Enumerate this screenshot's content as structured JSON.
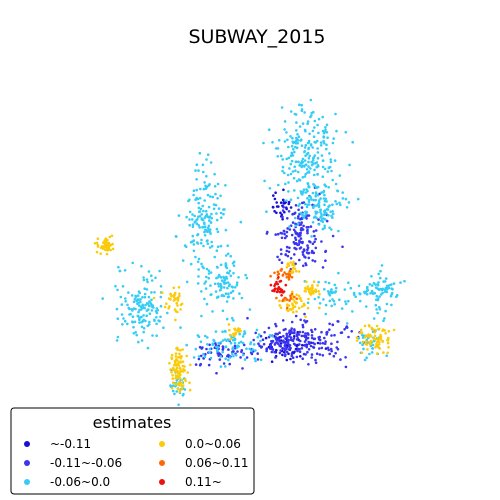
{
  "chart_data": {
    "type": "scatter",
    "title": "SUBWAY_2015",
    "legend": {
      "title": "estimates",
      "placement": "lower-left",
      "columns": 2
    },
    "classes": [
      {
        "name": "~-0.11",
        "color": "#1a0fd6"
      },
      {
        "name": "-0.11~-0.06",
        "color": "#3b35f0"
      },
      {
        "name": "-0.06~0.0",
        "color": "#35cdf5"
      },
      {
        "name": "0.0~0.06",
        "color": "#fbcb0a"
      },
      {
        "name": "0.06~0.11",
        "color": "#ff6a00"
      },
      {
        "name": "0.11~",
        "color": "#ee1010"
      }
    ],
    "clusters": [
      {
        "class": 2,
        "count": 220,
        "center": [
          305,
          155
        ],
        "spread": [
          24,
          40
        ],
        "seed": 11
      },
      {
        "class": 2,
        "count": 120,
        "center": [
          318,
          205
        ],
        "spread": [
          22,
          20
        ],
        "seed": 12
      },
      {
        "class": 2,
        "count": 160,
        "center": [
          203,
          220
        ],
        "spread": [
          18,
          45
        ],
        "seed": 13
      },
      {
        "class": 2,
        "count": 140,
        "center": [
          140,
          305
        ],
        "spread": [
          22,
          28
        ],
        "seed": 14
      },
      {
        "class": 2,
        "count": 90,
        "center": [
          222,
          285
        ],
        "spread": [
          16,
          22
        ],
        "seed": 15
      },
      {
        "class": 2,
        "count": 80,
        "center": [
          380,
          290
        ],
        "spread": [
          16,
          18
        ],
        "seed": 16
      },
      {
        "class": 2,
        "count": 90,
        "center": [
          230,
          345
        ],
        "spread": [
          28,
          15
        ],
        "seed": 17
      },
      {
        "class": 2,
        "count": 40,
        "center": [
          370,
          340
        ],
        "spread": [
          10,
          14
        ],
        "seed": 18
      },
      {
        "class": 2,
        "count": 30,
        "center": [
          178,
          385
        ],
        "spread": [
          8,
          12
        ],
        "seed": 19
      },
      {
        "class": 2,
        "count": 45,
        "center": [
          330,
          300
        ],
        "spread": [
          20,
          18
        ],
        "seed": 20
      },
      {
        "class": 1,
        "count": 160,
        "center": [
          300,
          235
        ],
        "spread": [
          22,
          28
        ],
        "seed": 21
      },
      {
        "class": 1,
        "count": 220,
        "center": [
          300,
          340
        ],
        "spread": [
          42,
          18
        ],
        "seed": 22
      },
      {
        "class": 1,
        "count": 60,
        "center": [
          225,
          355
        ],
        "spread": [
          28,
          12
        ],
        "seed": 23
      },
      {
        "class": 0,
        "count": 60,
        "center": [
          290,
          345
        ],
        "spread": [
          22,
          10
        ],
        "seed": 24
      },
      {
        "class": 0,
        "count": 30,
        "center": [
          280,
          205
        ],
        "spread": [
          8,
          10
        ],
        "seed": 25
      },
      {
        "class": 3,
        "count": 55,
        "center": [
          106,
          245
        ],
        "spread": [
          7,
          6
        ],
        "seed": 31
      },
      {
        "class": 3,
        "count": 35,
        "center": [
          175,
          300
        ],
        "spread": [
          8,
          10
        ],
        "seed": 32
      },
      {
        "class": 3,
        "count": 90,
        "center": [
          178,
          368
        ],
        "spread": [
          8,
          20
        ],
        "seed": 33
      },
      {
        "class": 3,
        "count": 70,
        "center": [
          376,
          338
        ],
        "spread": [
          14,
          10
        ],
        "seed": 34
      },
      {
        "class": 3,
        "count": 40,
        "center": [
          295,
          305
        ],
        "spread": [
          14,
          8
        ],
        "seed": 35
      },
      {
        "class": 3,
        "count": 30,
        "center": [
          312,
          290
        ],
        "spread": [
          8,
          6
        ],
        "seed": 36
      },
      {
        "class": 3,
        "count": 20,
        "center": [
          235,
          330
        ],
        "spread": [
          6,
          6
        ],
        "seed": 37
      },
      {
        "class": 3,
        "count": 20,
        "center": [
          292,
          268
        ],
        "spread": [
          6,
          6
        ],
        "seed": 38
      },
      {
        "class": 4,
        "count": 22,
        "center": [
          284,
          275
        ],
        "spread": [
          10,
          5
        ],
        "seed": 41
      },
      {
        "class": 4,
        "count": 14,
        "center": [
          288,
          300
        ],
        "spread": [
          8,
          5
        ],
        "seed": 42
      },
      {
        "class": 5,
        "count": 28,
        "center": [
          278,
          287
        ],
        "spread": [
          6,
          7
        ],
        "seed": 51
      }
    ]
  }
}
